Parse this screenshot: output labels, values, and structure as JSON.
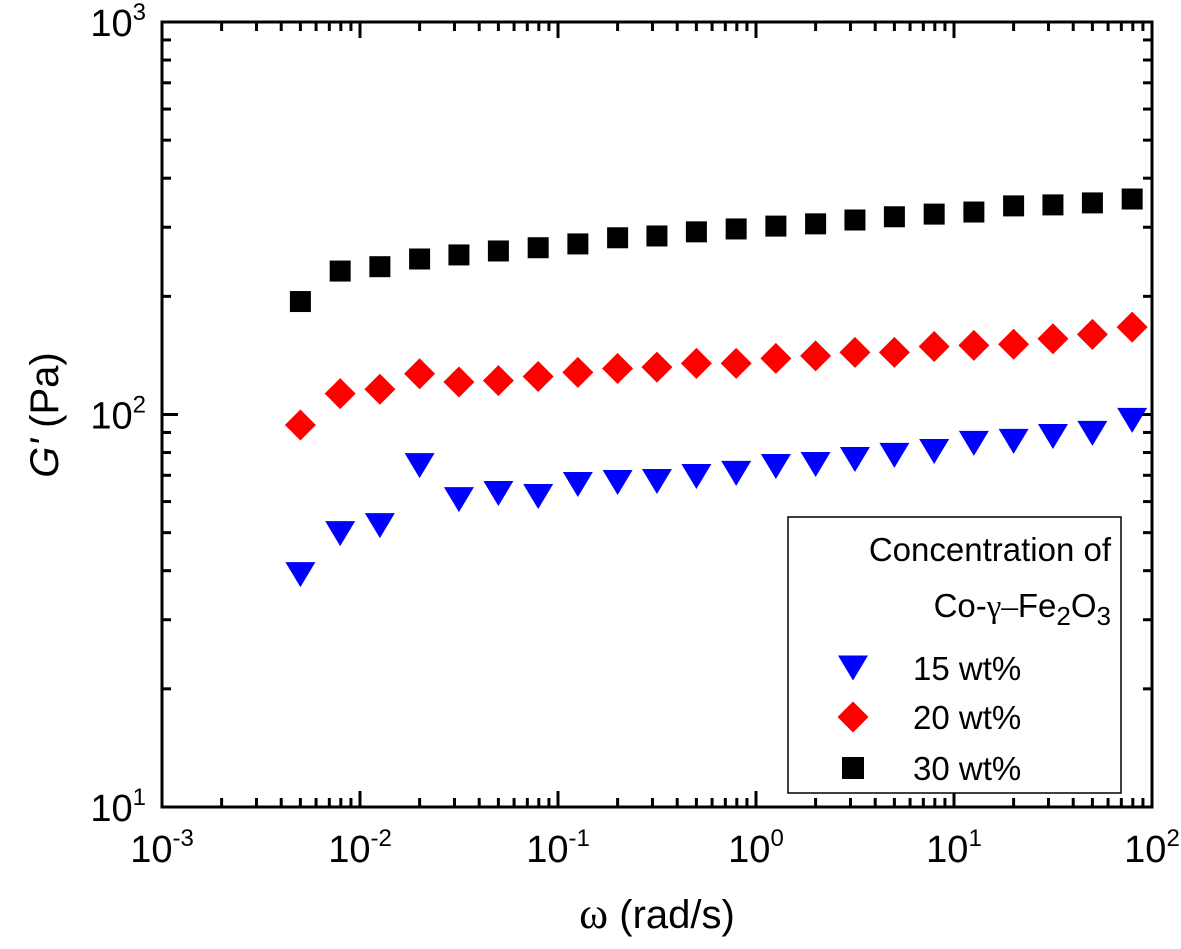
{
  "chart_data": {
    "type": "scatter",
    "title": "",
    "xlabel": "ω (rad/s)",
    "ylabel": "G' (Pa)",
    "xlabel_parts": {
      "symbol": "ω",
      "unit": " (rad/s)"
    },
    "ylabel_parts": {
      "symbol": "G'",
      "unit": " (Pa)"
    },
    "xscale": "log",
    "yscale": "log",
    "xlim": [
      0.001,
      100
    ],
    "ylim": [
      10,
      1000
    ],
    "grid": false,
    "x_ticks": [
      {
        "base": "10",
        "exp": "-3",
        "value": 0.001
      },
      {
        "base": "10",
        "exp": "-2",
        "value": 0.01
      },
      {
        "base": "10",
        "exp": "-1",
        "value": 0.1
      },
      {
        "base": "10",
        "exp": "0",
        "value": 1
      },
      {
        "base": "10",
        "exp": "1",
        "value": 10
      },
      {
        "base": "10",
        "exp": "2",
        "value": 100
      }
    ],
    "y_ticks": [
      {
        "base": "10",
        "exp": "1",
        "value": 10
      },
      {
        "base": "10",
        "exp": "2",
        "value": 100
      },
      {
        "base": "10",
        "exp": "3",
        "value": 1000
      }
    ],
    "x": [
      0.005,
      0.00794,
      0.0126,
      0.02,
      0.0316,
      0.05,
      0.0794,
      0.126,
      0.2,
      0.316,
      0.5,
      0.794,
      1.26,
      2,
      3.16,
      5,
      7.94,
      12.6,
      20,
      31.6,
      50,
      79.4
    ],
    "series": [
      {
        "name": "15 wt%",
        "marker": "triangle-down",
        "color": "#0000ff",
        "values": [
          39.1,
          49.7,
          52.1,
          74.1,
          60.7,
          62.9,
          61.8,
          66.3,
          67.1,
          67.5,
          69.5,
          70.8,
          73.7,
          74.6,
          76.8,
          78.7,
          80.5,
          84.4,
          85.4,
          87.9,
          89.5,
          96.6
        ]
      },
      {
        "name": "20 wt%",
        "marker": "diamond",
        "color": "#ff0000",
        "values": [
          94,
          113,
          116,
          127,
          121,
          122,
          125,
          128,
          131,
          132,
          135,
          135,
          139,
          141,
          144,
          144,
          149,
          150,
          151,
          156,
          160,
          167
        ]
      },
      {
        "name": "30 wt%",
        "marker": "square",
        "color": "#000000",
        "values": [
          194,
          232,
          238,
          249,
          255,
          261,
          266,
          272,
          282,
          285,
          292,
          297,
          302,
          306,
          313,
          319,
          324,
          328,
          340,
          342,
          346,
          354
        ]
      }
    ],
    "legend": {
      "placement": "bottom-right",
      "title_line1": "Concentration of",
      "title_line2": {
        "prefix": "Co-",
        "greek": "γ",
        "dash": "–",
        "fe": "Fe",
        "sub1": "2",
        "o": "O",
        "sub2": "3"
      },
      "entries": [
        "15 wt%",
        "20 wt%",
        "30 wt%"
      ]
    }
  }
}
